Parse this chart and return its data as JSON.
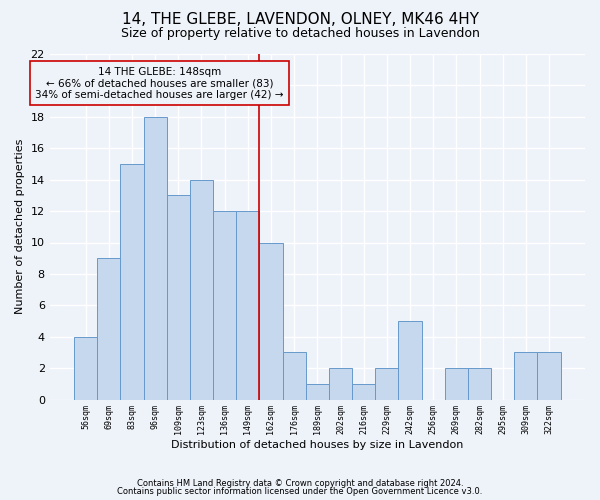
{
  "title": "14, THE GLEBE, LAVENDON, OLNEY, MK46 4HY",
  "subtitle": "Size of property relative to detached houses in Lavendon",
  "xlabel": "Distribution of detached houses by size in Lavendon",
  "ylabel": "Number of detached properties",
  "bin_labels": [
    "56sqm",
    "69sqm",
    "83sqm",
    "96sqm",
    "109sqm",
    "123sqm",
    "136sqm",
    "149sqm",
    "162sqm",
    "176sqm",
    "189sqm",
    "202sqm",
    "216sqm",
    "229sqm",
    "242sqm",
    "256sqm",
    "269sqm",
    "282sqm",
    "295sqm",
    "309sqm",
    "322sqm"
  ],
  "bar_heights": [
    4,
    9,
    15,
    18,
    13,
    14,
    12,
    12,
    10,
    3,
    1,
    2,
    1,
    2,
    5,
    0,
    2,
    2,
    0,
    3,
    3
  ],
  "bar_color": "#c5d8ee",
  "bar_edgecolor": "#6699cc",
  "vline_x": 7.5,
  "vline_color": "#cc0000",
  "annotation_text": "14 THE GLEBE: 148sqm\n← 66% of detached houses are smaller (83)\n34% of semi-detached houses are larger (42) →",
  "annotation_box_edgecolor": "#cc0000",
  "ylim": [
    0,
    22
  ],
  "yticks": [
    0,
    2,
    4,
    6,
    8,
    10,
    12,
    14,
    16,
    18,
    20,
    22
  ],
  "footnote1": "Contains HM Land Registry data © Crown copyright and database right 2024.",
  "footnote2": "Contains public sector information licensed under the Open Government Licence v3.0.",
  "background_color": "#eef2f9",
  "grid_color": "#ffffff",
  "title_fontsize": 11,
  "subtitle_fontsize": 9,
  "ann_fontsize": 7.5,
  "xlabel_fontsize": 8,
  "ylabel_fontsize": 8,
  "footnote_fontsize": 6,
  "ytick_fontsize": 8,
  "xtick_fontsize": 6
}
